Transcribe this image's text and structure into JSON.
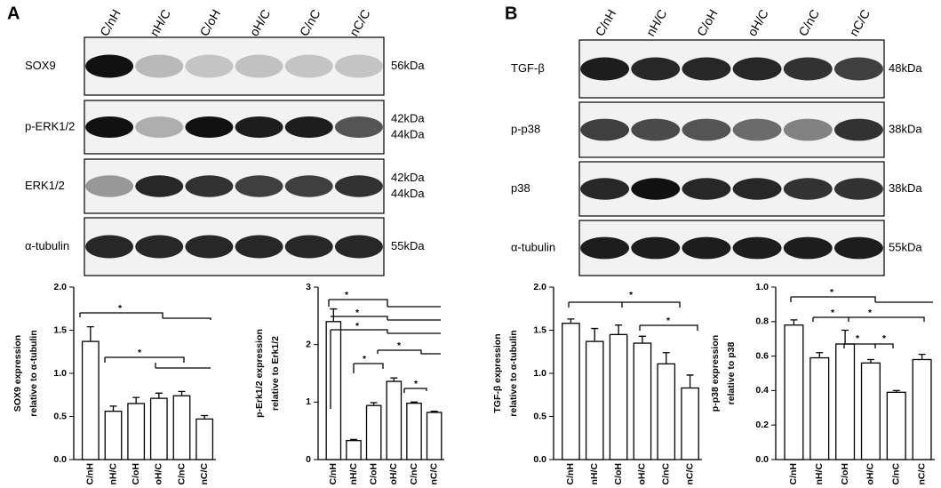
{
  "panels": [
    {
      "letter": "A",
      "lanes": [
        "C/nH",
        "nH/C",
        "C/oH",
        "oH/C",
        "C/nC",
        "nC/C"
      ],
      "blots": [
        {
          "label": "SOX9",
          "kda": [
            "56kDa"
          ]
        },
        {
          "label": "p-ERK1/2",
          "kda": [
            "42kDa",
            "44kDa"
          ]
        },
        {
          "label": "ERK1/2",
          "kda": [
            "42kDa",
            "44kDa"
          ]
        },
        {
          "label": "α-tubulin",
          "kda": [
            "55kDa"
          ]
        }
      ]
    },
    {
      "letter": "B",
      "lanes": [
        "C/nH",
        "nH/C",
        "C/oH",
        "oH/C",
        "C/nC",
        "nC/C"
      ],
      "blots": [
        {
          "label": "TGF-β",
          "kda": [
            "48kDa"
          ]
        },
        {
          "label": "p-p38",
          "kda": [
            "38kDa"
          ]
        },
        {
          "label": "p38",
          "kda": [
            "38kDa"
          ]
        },
        {
          "label": "α-tubulin",
          "kda": [
            "55kDa"
          ]
        }
      ]
    }
  ],
  "chart_data": [
    {
      "type": "bar",
      "y_label": [
        "SOX9 expression",
        "relative to α-tubulin"
      ],
      "categories": [
        "C/nH",
        "nH/C",
        "C/oH",
        "oH/C",
        "C/nC",
        "nC/C"
      ],
      "values": [
        1.37,
        0.56,
        0.65,
        0.71,
        0.74,
        0.47
      ],
      "errors": [
        0.17,
        0.06,
        0.07,
        0.06,
        0.05,
        0.04
      ],
      "color": "#ffffff",
      "ylim": [
        0,
        2
      ],
      "yticks": [
        {
          "value": 0,
          "label": "0.0"
        },
        0.5,
        {
          "value": 1,
          "label": "1.0"
        },
        1.5,
        {
          "value": 2,
          "label": "2.0"
        }
      ],
      "annotations": [
        "*",
        "*"
      ]
    },
    {
      "type": "bar",
      "y_label": [
        "p-Erk1/2 expression",
        "relative to Erk1/2"
      ],
      "categories": [
        "C/nH",
        "nH/C",
        "C/oH",
        "oH/C",
        "C/nC",
        "nC/C"
      ],
      "values": [
        2.4,
        0.33,
        0.94,
        1.36,
        0.98,
        0.82
      ],
      "errors": [
        0.22,
        0.02,
        0.05,
        0.06,
        0.02,
        0.02
      ],
      "color": "#ffffff",
      "ylim": [
        0,
        3
      ],
      "yticks": [
        0,
        1,
        2,
        3
      ],
      "annotations": [
        "*",
        "*",
        "*",
        "*",
        "*",
        "*"
      ]
    },
    {
      "type": "bar",
      "y_label": [
        "TGF-β expression",
        "relative to α-tubulin"
      ],
      "categories": [
        "C/nH",
        "nH/C",
        "C/oH",
        "oH/C",
        "C/nC",
        "nC/C"
      ],
      "values": [
        1.58,
        1.37,
        1.45,
        1.35,
        1.11,
        0.83
      ],
      "errors": [
        0.05,
        0.15,
        0.11,
        0.08,
        0.13,
        0.15
      ],
      "color": "#ffffff",
      "ylim": [
        0,
        2
      ],
      "yticks": [
        {
          "value": 0,
          "label": "0.0"
        },
        0.5,
        {
          "value": 1,
          "label": "1.0"
        },
        1.5,
        {
          "value": 2,
          "label": "2.0"
        }
      ],
      "annotations": [
        "*",
        "*"
      ]
    },
    {
      "type": "bar",
      "y_label": [
        "p-p38 expression",
        "relative to p38"
      ],
      "categories": [
        "C/nH",
        "nH/C",
        "C/oH",
        "oH/C",
        "C/nC",
        "nC/C"
      ],
      "values": [
        0.78,
        0.59,
        0.67,
        0.56,
        0.39,
        0.58
      ],
      "errors": [
        0.03,
        0.03,
        0.08,
        0.02,
        0.01,
        0.03
      ],
      "color": "#ffffff",
      "ylim": [
        0,
        1
      ],
      "yticks": [
        {
          "value": 0,
          "label": "0.0"
        },
        0.2,
        0.4,
        0.6,
        0.8,
        {
          "value": 1,
          "label": "1.0"
        }
      ],
      "annotations": [
        "*",
        "*",
        "*",
        "*",
        "*"
      ]
    }
  ]
}
